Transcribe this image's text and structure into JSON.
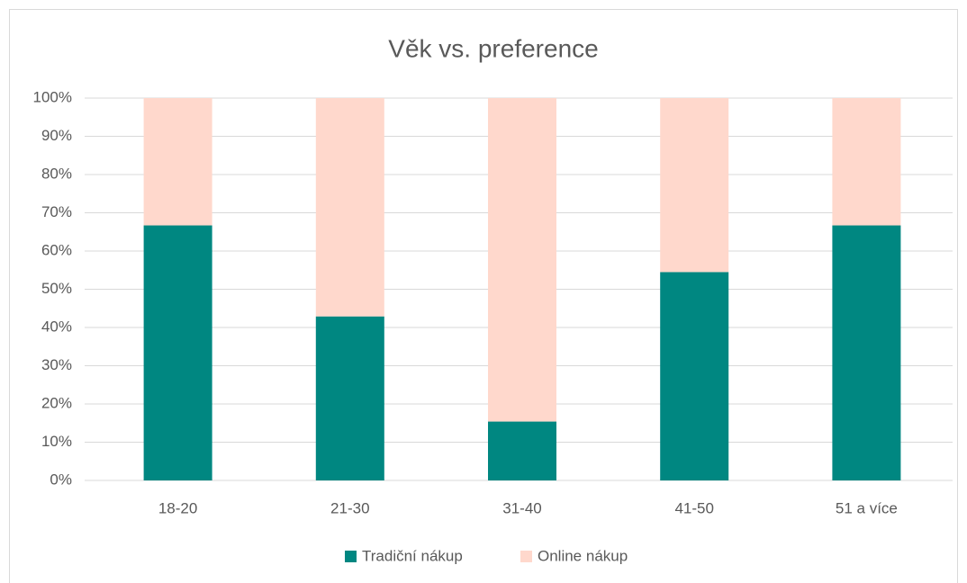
{
  "chart_data": {
    "type": "stacked_bar",
    "title": "Věk vs. preference",
    "categories": [
      "18-20",
      "21-30",
      "31-40",
      "41-50",
      "51 a více"
    ],
    "series": [
      {
        "name": "Tradiční nákup",
        "color": "#008781",
        "values": [
          66.7,
          42.9,
          15.4,
          54.5,
          66.7
        ]
      },
      {
        "name": "Online nákup",
        "color": "#ffd8cc",
        "values": [
          33.3,
          57.1,
          84.6,
          45.5,
          33.3
        ]
      }
    ],
    "ylim": [
      0,
      100
    ],
    "yticks": [
      {
        "value": 0,
        "label": "0%"
      },
      {
        "value": 10,
        "label": "10%"
      },
      {
        "value": 20,
        "label": "20%"
      },
      {
        "value": 30,
        "label": "30%"
      },
      {
        "value": 40,
        "label": "40%"
      },
      {
        "value": 50,
        "label": "50%"
      },
      {
        "value": 60,
        "label": "60%"
      },
      {
        "value": 70,
        "label": "70%"
      },
      {
        "value": 80,
        "label": "80%"
      },
      {
        "value": 90,
        "label": "90%"
      },
      {
        "value": 100,
        "label": "100%"
      }
    ],
    "grid": true,
    "legend": "bottom"
  }
}
